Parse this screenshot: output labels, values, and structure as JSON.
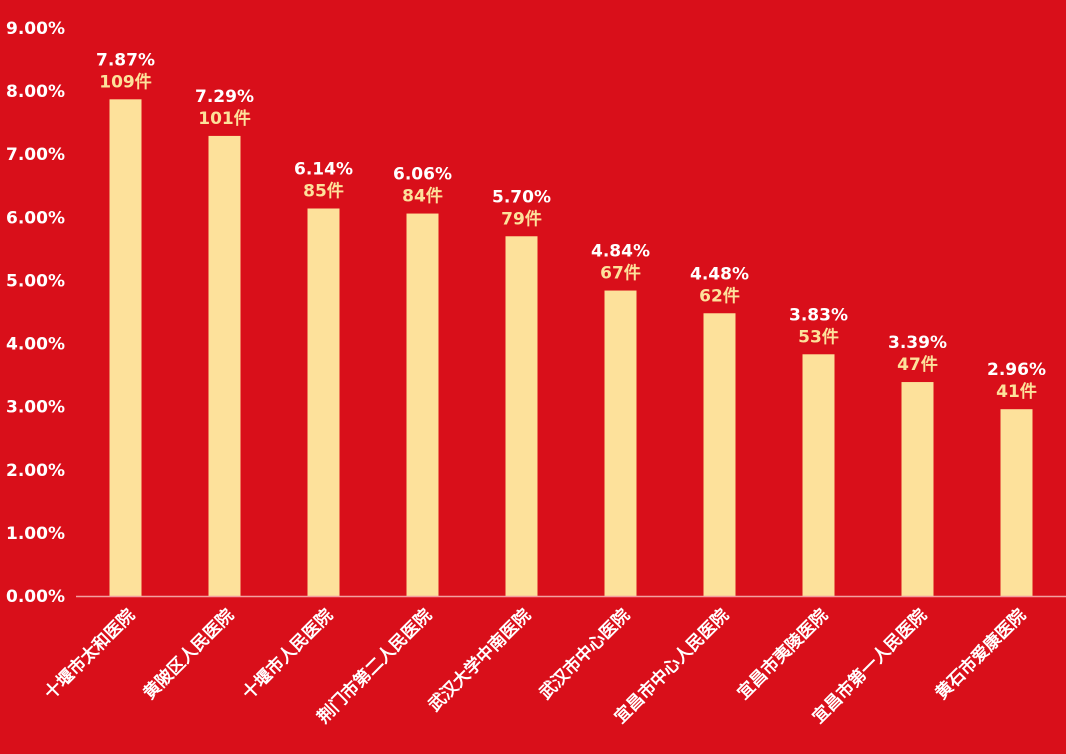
{
  "chart_data": {
    "type": "bar",
    "categories": [
      "十堰市太和医院",
      "黄陂区人民医院",
      "十堰市人民医院",
      "荆门市第二人民医院",
      "武汉大学中南医院",
      "武汉市中心医院",
      "宜昌市中心人民医院",
      "宜昌市夷陵医院",
      "宜昌市第一人民医院",
      "黄石市爱康医院"
    ],
    "values": [
      7.87,
      7.29,
      6.14,
      6.06,
      5.7,
      4.84,
      4.48,
      3.83,
      3.39,
      2.96
    ],
    "value_labels": [
      "7.87%",
      "7.29%",
      "6.14%",
      "6.06%",
      "5.70%",
      "4.84%",
      "4.48%",
      "3.83%",
      "3.39%",
      "2.96%"
    ],
    "counts": [
      "109件",
      "101件",
      "85件",
      "84件",
      "79件",
      "67件",
      "62件",
      "53件",
      "47件",
      "41件"
    ],
    "ylim": [
      0,
      9
    ],
    "yticks": [
      "0.00%",
      "1.00%",
      "2.00%",
      "3.00%",
      "4.00%",
      "5.00%",
      "6.00%",
      "7.00%",
      "8.00%",
      "9.00%"
    ],
    "grid": false,
    "legend": "none",
    "colors": {
      "background": "#d90f1a",
      "bar": "#fde19b",
      "count_label": "#fde19b",
      "text": "#ffffff",
      "axis": "#f3a0a0"
    }
  }
}
